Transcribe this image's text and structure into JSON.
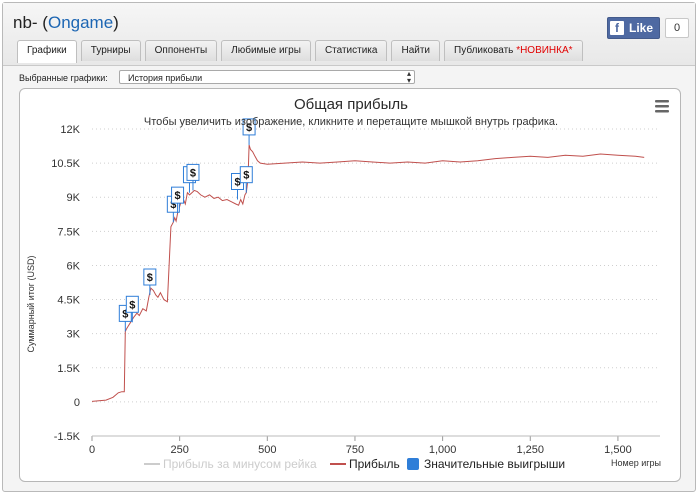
{
  "window": {
    "title_prefix": "nb- (",
    "title_link": "Ongame",
    "title_suffix": ")"
  },
  "facebook": {
    "f": "f",
    "like_label": "Like",
    "count": "0"
  },
  "tabs": [
    {
      "label": "Графики",
      "active": true
    },
    {
      "label": "Турниры"
    },
    {
      "label": "Оппоненты"
    },
    {
      "label": "Любимые игры"
    },
    {
      "label": "Статистика"
    },
    {
      "label": "Найти"
    },
    {
      "label": "Публиковать",
      "badge": "*НОВИНКА*"
    }
  ],
  "selector": {
    "label": "Выбранные графики:",
    "value": "История прибыли"
  },
  "colors": {
    "profit_line": "#c0504d",
    "rake_line": "#cccccc",
    "big_win": "#2f7ed8",
    "tab_badge": "#e10000",
    "link": "#1d66b3"
  },
  "chart_data": {
    "type": "line",
    "title": "Общая прибыль",
    "subtitle": "Чтобы увеличить изображение, кликните и перетащите мышкой внутрь графика.",
    "ylabel": "Суммарный итог (USD)",
    "xlabel": "Номер игры",
    "xlim": [
      0,
      1620
    ],
    "ylim": [
      -1500,
      12000
    ],
    "x_ticks": [
      0,
      250,
      500,
      750,
      1000,
      1250,
      1500
    ],
    "x_tick_labels": [
      "0",
      "250",
      "500",
      "750",
      "1,000",
      "1,250",
      "1,500"
    ],
    "y_ticks": [
      -1500,
      0,
      1500,
      3000,
      4500,
      6000,
      7500,
      9000,
      10500,
      12000
    ],
    "y_tick_labels": [
      "-1.5K",
      "0",
      "1.5K",
      "3K",
      "4.5K",
      "6K",
      "7.5K",
      "9K",
      "10.5K",
      "12K"
    ],
    "grid": true,
    "legend_placement": "bottom",
    "menu_icon": "menu-icon",
    "series": [
      {
        "name": "Прибыль за минусом рейка",
        "visible": false,
        "values": []
      },
      {
        "name": "Прибыль",
        "x": [
          0,
          20,
          40,
          60,
          75,
          85,
          92,
          95,
          98,
          102,
          110,
          118,
          128,
          135,
          145,
          155,
          162,
          168,
          175,
          182,
          188,
          195,
          205,
          215,
          225,
          232,
          236,
          240,
          244,
          250,
          258,
          266,
          272,
          278,
          285,
          292,
          300,
          310,
          322,
          335,
          348,
          360,
          372,
          385,
          398,
          410,
          418,
          424,
          430,
          436,
          440,
          445,
          448,
          452,
          458,
          465,
          472,
          480,
          500,
          550,
          600,
          650,
          700,
          750,
          800,
          850,
          900,
          950,
          1000,
          1050,
          1100,
          1150,
          1200,
          1250,
          1300,
          1350,
          1400,
          1450,
          1500,
          1550,
          1575
        ],
        "values": [
          20,
          50,
          80,
          200,
          400,
          450,
          450,
          3100,
          3200,
          3300,
          3500,
          3700,
          3900,
          3800,
          4100,
          4000,
          4600,
          5000,
          4900,
          4700,
          4600,
          4800,
          4500,
          4400,
          7700,
          7900,
          8100,
          7950,
          8300,
          8600,
          9000,
          8700,
          9200,
          9100,
          9200,
          9300,
          9250,
          9100,
          9000,
          9100,
          8950,
          9000,
          8850,
          8900,
          8800,
          8700,
          8650,
          8900,
          8700,
          9100,
          9200,
          9800,
          11300,
          11100,
          11000,
          10800,
          10600,
          10500,
          10450,
          10500,
          10550,
          10500,
          10550,
          10600,
          10550,
          10500,
          10550,
          10500,
          10600,
          10550,
          10600,
          10700,
          10750,
          10800,
          10750,
          10850,
          10800,
          10900,
          10850,
          10800,
          10750
        ]
      },
      {
        "name": "Значительные выигрыши",
        "type": "flags",
        "flag_label": "$",
        "points": [
          {
            "x": 95,
            "y": 3100
          },
          {
            "x": 115,
            "y": 3500
          },
          {
            "x": 165,
            "y": 4700
          },
          {
            "x": 232,
            "y": 7900
          },
          {
            "x": 244,
            "y": 8300
          },
          {
            "x": 278,
            "y": 9200
          },
          {
            "x": 288,
            "y": 9300
          },
          {
            "x": 415,
            "y": 8900
          },
          {
            "x": 440,
            "y": 9200
          },
          {
            "x": 448,
            "y": 11300
          }
        ]
      }
    ]
  }
}
